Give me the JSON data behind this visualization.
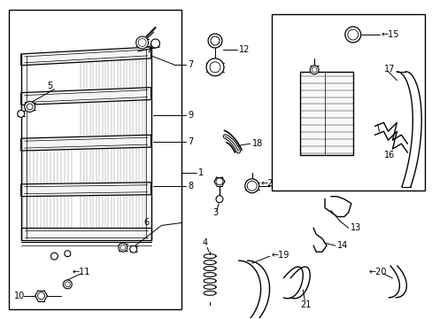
{
  "bg_color": "#ffffff",
  "lc": "#000000",
  "lw": 1.0,
  "fs": 7.0,
  "fig_width": 4.89,
  "fig_height": 3.6,
  "dpi": 100
}
